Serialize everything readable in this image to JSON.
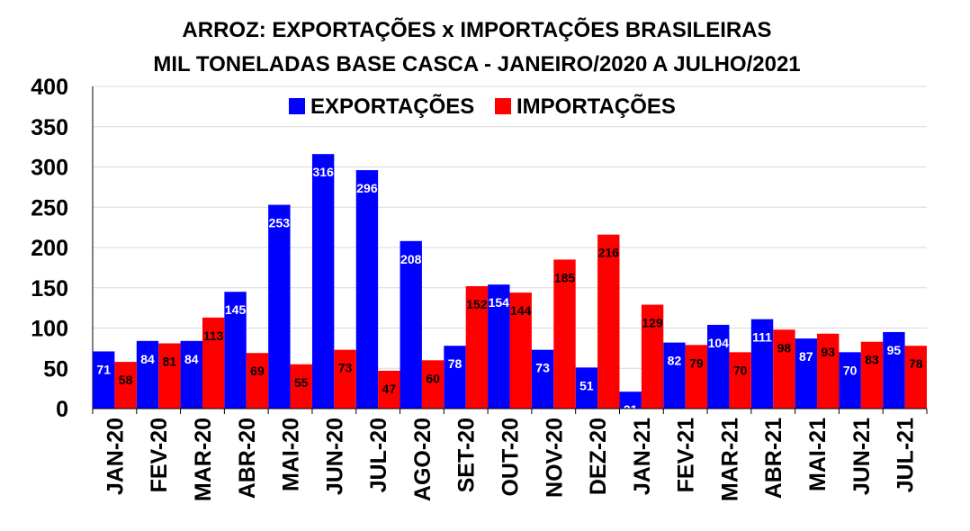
{
  "chart_data": {
    "type": "bar",
    "title_line1": "ARROZ: EXPORTAÇÕES x IMPORTAÇÕES BRASILEIRAS",
    "title_line2": "MIL TONELADAS BASE CASCA - JANEIRO/2020 A JULHO/2021",
    "categories": [
      "JAN-20",
      "FEV-20",
      "MAR-20",
      "ABR-20",
      "MAI-20",
      "JUN-20",
      "JUL-20",
      "AGO-20",
      "SET-20",
      "OUT-20",
      "NOV-20",
      "DEZ-20",
      "JAN-21",
      "FEV-21",
      "MAR-21",
      "ABR-21",
      "MAI-21",
      "JUN-21",
      "JUL-21"
    ],
    "series": [
      {
        "name": "EXPORTAÇÕES",
        "color": "#0000ff",
        "label_color": "#ffffff",
        "values": [
          71,
          84,
          84,
          145,
          253,
          316,
          296,
          208,
          78,
          154,
          73,
          51,
          21,
          82,
          104,
          111,
          87,
          70,
          95
        ]
      },
      {
        "name": "IMPORTAÇÕES",
        "color": "#ff0000",
        "label_color": "#000000",
        "values": [
          58,
          81,
          113,
          69,
          55,
          73,
          47,
          60,
          152,
          144,
          185,
          216,
          129,
          79,
          70,
          98,
          93,
          83,
          78
        ]
      }
    ],
    "yticks": [
      0,
      50,
      100,
      150,
      200,
      250,
      300,
      350,
      400
    ],
    "ylim": [
      0,
      400
    ],
    "grid": true,
    "legend": "top-center"
  }
}
